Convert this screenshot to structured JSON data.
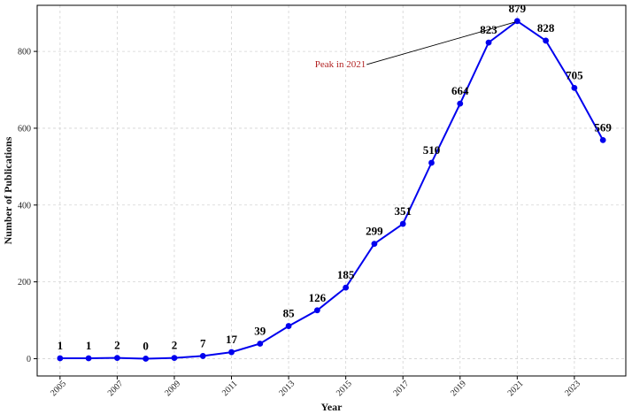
{
  "chart_data": {
    "type": "line",
    "title": "",
    "xlabel": "Year",
    "ylabel": "Number of Publications",
    "x": [
      2005,
      2006,
      2007,
      2008,
      2009,
      2010,
      2011,
      2012,
      2013,
      2014,
      2015,
      2016,
      2017,
      2018,
      2019,
      2020,
      2021,
      2022,
      2023,
      2024
    ],
    "series": [
      {
        "values": [
          1,
          1,
          2,
          0,
          2,
          7,
          17,
          39,
          85,
          126,
          185,
          299,
          351,
          510,
          664,
          823,
          879,
          828,
          705,
          569
        ],
        "color": "#0000ee",
        "marker": "circle"
      }
    ],
    "x_ticks": [
      "2005",
      "2007",
      "2009",
      "2011",
      "2013",
      "2015",
      "2017",
      "2019",
      "2021",
      "2023"
    ],
    "y_ticks": [
      "0",
      "200",
      "400",
      "600",
      "800"
    ],
    "xlim": [
      2004.2,
      2024.8
    ],
    "ylim": [
      -45,
      920
    ],
    "grid": true,
    "data_labels": true,
    "annotation": {
      "text": "Peak in 2021",
      "x": 2021,
      "y": 879,
      "color": "#b22222"
    }
  }
}
